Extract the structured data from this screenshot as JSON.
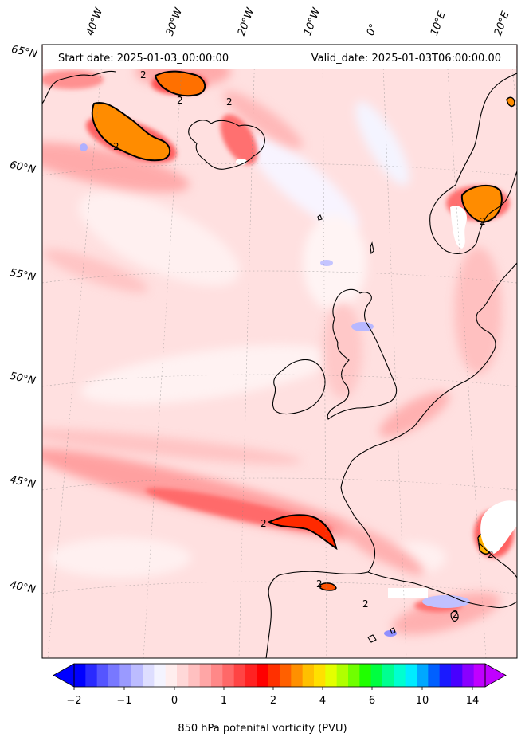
{
  "header": {
    "start_date": "Start date: 2025-01-03_00:00:00",
    "valid_date": "Valid_date: 2025-01-03T06:00:00.00"
  },
  "lat_labels": [
    "65°N",
    "60°N",
    "55°N",
    "50°N",
    "45°N",
    "40°N"
  ],
  "lon_labels": [
    "40°W",
    "30°W",
    "20°W",
    "10°W",
    "0°",
    "10°E",
    "20°E"
  ],
  "contour_label": "2",
  "colorbar": {
    "label": "850 hPa potenital vorticity (PVU)",
    "ticks": [
      "−2",
      "−1",
      "0",
      "1",
      "2",
      "4",
      "6",
      "10",
      "14"
    ],
    "colors": [
      "#0000ff",
      "#2a2aff",
      "#5555ff",
      "#7878ff",
      "#9a9aff",
      "#bcbcff",
      "#dedeff",
      "#f4f4ff",
      "#ffeeee",
      "#ffd8d8",
      "#ffc0c0",
      "#ffa6a6",
      "#ff8888",
      "#ff6868",
      "#ff4444",
      "#ff2222",
      "#ff0000",
      "#ff3000",
      "#ff6000",
      "#ff9000",
      "#ffc000",
      "#ffe000",
      "#e4ff00",
      "#b0ff00",
      "#70ff00",
      "#20ff00",
      "#00ff40",
      "#00ff90",
      "#00ffd0",
      "#00ecff",
      "#00a8ff",
      "#0060ff",
      "#1a1aff",
      "#4800ff",
      "#8a00ff",
      "#c000ff"
    ]
  }
}
